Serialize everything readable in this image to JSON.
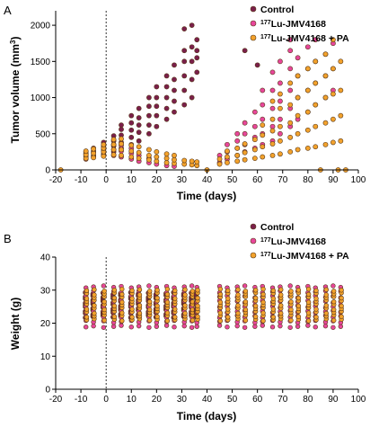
{
  "colors": {
    "control": "#7a1f4b",
    "lu": "#e8469b",
    "lu_pa": "#f3a22c"
  },
  "chart_data": [
    {
      "type": "scatter",
      "panel_label": "A",
      "xlabel": "Time (days)",
      "ylabel_main": "Tumor volume (mm",
      "ylabel_sup": "3",
      "ylabel_end": ")",
      "xlim": [
        -20,
        100
      ],
      "ylim": [
        0,
        2200
      ],
      "xticks": [
        -20,
        -10,
        0,
        10,
        20,
        30,
        40,
        50,
        60,
        70,
        80,
        90,
        100
      ],
      "yticks": [
        0,
        500,
        1000,
        1500,
        2000
      ],
      "reference_line_x": 0,
      "legend": [
        {
          "key": "control",
          "label_sup": "",
          "label": "Control"
        },
        {
          "key": "lu",
          "label_sup": "177",
          "label": "Lu-JMV4168"
        },
        {
          "key": "lu_pa",
          "label_sup": "177",
          "label": "Lu-JMV4168 + PA"
        }
      ],
      "series": [
        {
          "key": "control",
          "points": [
            [
              -8,
              180
            ],
            [
              -8,
              220
            ],
            [
              -8,
              250
            ],
            [
              -5,
              200
            ],
            [
              -5,
              260
            ],
            [
              -5,
              300
            ],
            [
              -1,
              220
            ],
            [
              -1,
              280
            ],
            [
              -1,
              330
            ],
            [
              -1,
              380
            ],
            [
              3,
              250
            ],
            [
              3,
              330
            ],
            [
              3,
              400
            ],
            [
              3,
              470
            ],
            [
              6,
              300
            ],
            [
              6,
              380
            ],
            [
              6,
              480
            ],
            [
              6,
              560
            ],
            [
              6,
              620
            ],
            [
              10,
              350
            ],
            [
              10,
              450
            ],
            [
              10,
              550
            ],
            [
              10,
              650
            ],
            [
              10,
              750
            ],
            [
              13,
              400
            ],
            [
              13,
              520
            ],
            [
              13,
              620
            ],
            [
              13,
              720
            ],
            [
              13,
              850
            ],
            [
              17,
              500
            ],
            [
              17,
              620
            ],
            [
              17,
              750
            ],
            [
              17,
              880
            ],
            [
              17,
              1000
            ],
            [
              20,
              600
            ],
            [
              20,
              750
            ],
            [
              20,
              880
            ],
            [
              20,
              1000
            ],
            [
              20,
              1150
            ],
            [
              24,
              700
            ],
            [
              24,
              850
            ],
            [
              24,
              1000
            ],
            [
              24,
              1150
            ],
            [
              24,
              1300
            ],
            [
              27,
              800
            ],
            [
              27,
              950
            ],
            [
              27,
              1100
            ],
            [
              27,
              1250
            ],
            [
              27,
              1450
            ],
            [
              31,
              900
            ],
            [
              31,
              1100
            ],
            [
              31,
              1300
            ],
            [
              31,
              1500
            ],
            [
              31,
              1650
            ],
            [
              31,
              1950
            ],
            [
              34,
              1000
            ],
            [
              34,
              1250
            ],
            [
              34,
              1500
            ],
            [
              34,
              1700
            ],
            [
              34,
              2000
            ],
            [
              36,
              1350
            ],
            [
              36,
              1550
            ],
            [
              36,
              1650
            ],
            [
              36,
              1800
            ],
            [
              55,
              1650
            ],
            [
              60,
              1450
            ]
          ]
        },
        {
          "key": "lu",
          "points": [
            [
              -8,
              150
            ],
            [
              -8,
              200
            ],
            [
              -8,
              230
            ],
            [
              -5,
              180
            ],
            [
              -5,
              240
            ],
            [
              -1,
              200
            ],
            [
              -1,
              260
            ],
            [
              -1,
              310
            ],
            [
              3,
              200
            ],
            [
              3,
              280
            ],
            [
              3,
              350
            ],
            [
              6,
              180
            ],
            [
              6,
              260
            ],
            [
              6,
              340
            ],
            [
              10,
              150
            ],
            [
              10,
              230
            ],
            [
              10,
              300
            ],
            [
              13,
              120
            ],
            [
              13,
              200
            ],
            [
              17,
              100
            ],
            [
              17,
              160
            ],
            [
              20,
              80
            ],
            [
              24,
              60
            ],
            [
              27,
              50
            ],
            [
              45,
              100
            ],
            [
              45,
              200
            ],
            [
              48,
              150
            ],
            [
              48,
              250
            ],
            [
              48,
              350
            ],
            [
              52,
              200
            ],
            [
              52,
              300
            ],
            [
              52,
              400
            ],
            [
              52,
              500
            ],
            [
              55,
              250
            ],
            [
              55,
              350
            ],
            [
              55,
              500
            ],
            [
              55,
              650
            ],
            [
              59,
              300
            ],
            [
              59,
              450
            ],
            [
              59,
              600
            ],
            [
              59,
              800
            ],
            [
              62,
              350
            ],
            [
              62,
              500
            ],
            [
              62,
              700
            ],
            [
              62,
              900
            ],
            [
              62,
              1100
            ],
            [
              66,
              400
            ],
            [
              66,
              600
            ],
            [
              66,
              850
            ],
            [
              66,
              1100
            ],
            [
              66,
              1350
            ],
            [
              69,
              500
            ],
            [
              69,
              700
            ],
            [
              69,
              950
            ],
            [
              69,
              1200
            ],
            [
              69,
              1500
            ],
            [
              73,
              600
            ],
            [
              73,
              850
            ],
            [
              73,
              1100
            ],
            [
              73,
              1400
            ],
            [
              73,
              1650
            ],
            [
              73,
              1800
            ],
            [
              76,
              700
            ],
            [
              76,
              1000
            ],
            [
              76,
              1300
            ],
            [
              76,
              1550
            ],
            [
              80,
              800
            ],
            [
              80,
              1100
            ],
            [
              80,
              1400
            ],
            [
              80,
              1700
            ],
            [
              83,
              900
            ],
            [
              83,
              1200
            ],
            [
              83,
              1500
            ],
            [
              83,
              1800
            ],
            [
              87,
              1000
            ],
            [
              87,
              1300
            ],
            [
              87,
              1600
            ],
            [
              90,
              1100
            ],
            [
              90,
              1400
            ],
            [
              90,
              1750
            ]
          ]
        },
        {
          "key": "lu_pa",
          "points": [
            [
              -8,
              160
            ],
            [
              -8,
              210
            ],
            [
              -8,
              260
            ],
            [
              -5,
              170
            ],
            [
              -5,
              230
            ],
            [
              -5,
              290
            ],
            [
              -1,
              190
            ],
            [
              -1,
              250
            ],
            [
              -1,
              300
            ],
            [
              -1,
              350
            ],
            [
              3,
              210
            ],
            [
              3,
              280
            ],
            [
              3,
              350
            ],
            [
              3,
              420
            ],
            [
              6,
              200
            ],
            [
              6,
              280
            ],
            [
              6,
              360
            ],
            [
              6,
              430
            ],
            [
              10,
              180
            ],
            [
              10,
              260
            ],
            [
              10,
              340
            ],
            [
              13,
              160
            ],
            [
              13,
              240
            ],
            [
              13,
              320
            ],
            [
              17,
              140
            ],
            [
              17,
              200
            ],
            [
              17,
              280
            ],
            [
              20,
              120
            ],
            [
              20,
              180
            ],
            [
              20,
              250
            ],
            [
              24,
              100
            ],
            [
              24,
              160
            ],
            [
              24,
              220
            ],
            [
              27,
              90
            ],
            [
              27,
              140
            ],
            [
              27,
              200
            ],
            [
              31,
              80
            ],
            [
              31,
              130
            ],
            [
              34,
              70
            ],
            [
              34,
              120
            ],
            [
              36,
              60
            ],
            [
              36,
              110
            ],
            [
              45,
              80
            ],
            [
              45,
              150
            ],
            [
              48,
              100
            ],
            [
              48,
              180
            ],
            [
              48,
              260
            ],
            [
              52,
              120
            ],
            [
              52,
              200
            ],
            [
              52,
              300
            ],
            [
              55,
              140
            ],
            [
              55,
              240
            ],
            [
              55,
              360
            ],
            [
              59,
              160
            ],
            [
              59,
              280
            ],
            [
              59,
              420
            ],
            [
              62,
              180
            ],
            [
              62,
              320
            ],
            [
              62,
              480
            ],
            [
              62,
              620
            ],
            [
              66,
              200
            ],
            [
              66,
              360
            ],
            [
              66,
              540
            ],
            [
              66,
              700
            ],
            [
              66,
              950
            ],
            [
              69,
              220
            ],
            [
              69,
              400
            ],
            [
              69,
              600
            ],
            [
              69,
              850
            ],
            [
              69,
              1050
            ],
            [
              73,
              250
            ],
            [
              73,
              450
            ],
            [
              73,
              650
            ],
            [
              73,
              900
            ],
            [
              73,
              1200
            ],
            [
              76,
              280
            ],
            [
              76,
              500
            ],
            [
              76,
              750
            ],
            [
              76,
              1000
            ],
            [
              76,
              1300
            ],
            [
              80,
              300
            ],
            [
              80,
              550
            ],
            [
              80,
              800
            ],
            [
              80,
              1100
            ],
            [
              80,
              1400
            ],
            [
              83,
              320
            ],
            [
              83,
              600
            ],
            [
              83,
              900
            ],
            [
              83,
              1200
            ],
            [
              83,
              1500
            ],
            [
              87,
              350
            ],
            [
              87,
              650
            ],
            [
              87,
              1000
            ],
            [
              87,
              1300
            ],
            [
              87,
              1600
            ],
            [
              90,
              380
            ],
            [
              90,
              700
            ],
            [
              90,
              1050
            ],
            [
              90,
              1400
            ],
            [
              90,
              1800
            ],
            [
              93,
              400
            ],
            [
              93,
              750
            ],
            [
              93,
              1100
            ],
            [
              93,
              1500
            ],
            [
              -18,
              0
            ],
            [
              40,
              0
            ],
            [
              85,
              0
            ],
            [
              92,
              0
            ],
            [
              95,
              0
            ]
          ]
        }
      ]
    },
    {
      "type": "scatter",
      "panel_label": "B",
      "xlabel": "Time (days)",
      "ylabel": "Weight (g)",
      "xlim": [
        -20,
        100
      ],
      "ylim": [
        0,
        40
      ],
      "xticks": [
        -20,
        -10,
        0,
        10,
        20,
        30,
        40,
        50,
        60,
        70,
        80,
        90,
        100
      ],
      "yticks": [
        0,
        10,
        20,
        30,
        40
      ],
      "reference_line_x": 0,
      "legend": [
        {
          "key": "control",
          "label_sup": "",
          "label": "Control"
        },
        {
          "key": "lu",
          "label_sup": "177",
          "label": "Lu-JMV4168"
        },
        {
          "key": "lu_pa",
          "label_sup": "177",
          "label": "Lu-JMV4168 + PA"
        }
      ],
      "x_days": [
        -8,
        -5,
        -1,
        3,
        6,
        10,
        13,
        17,
        20,
        24,
        27,
        31,
        34,
        36,
        45,
        48,
        52,
        55,
        59,
        62,
        66,
        69,
        73,
        76,
        80,
        83,
        87,
        90,
        93
      ],
      "y_ranges": {
        "control": [
          22,
          29
        ],
        "lu": [
          19,
          31
        ],
        "lu_pa": [
          21,
          30
        ]
      }
    }
  ]
}
